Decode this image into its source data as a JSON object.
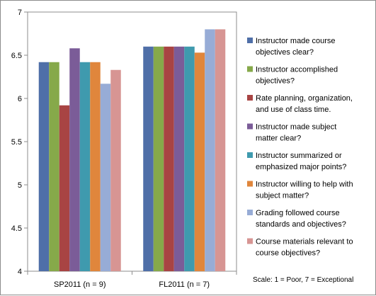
{
  "chart_data": {
    "type": "bar",
    "categories": [
      "SP2011 (n = 9)",
      "FL2011 (n = 7)"
    ],
    "series": [
      {
        "name": "Instructor made course objectives clear?",
        "legend_lines": [
          "Instructor made course",
          "objectives clear?"
        ],
        "color": "#4f6fa8",
        "values": [
          6.42,
          6.6
        ]
      },
      {
        "name": "Instructor accomplished objectives?",
        "legend_lines": [
          "Instructor accomplished",
          "objectives?"
        ],
        "color": "#86a94a",
        "values": [
          6.42,
          6.6
        ]
      },
      {
        "name": "Rate planning, organization, and use of class time.",
        "legend_lines": [
          "Rate planning, organization,",
          "and use of class time."
        ],
        "color": "#a84443",
        "values": [
          5.92,
          6.6
        ]
      },
      {
        "name": "Instructor made subject matter clear?",
        "legend_lines": [
          "Instructor made subject",
          "matter clear?"
        ],
        "color": "#7b5c98",
        "values": [
          6.58,
          6.6
        ]
      },
      {
        "name": "Instructor summarized or emphasized major points?",
        "legend_lines": [
          "Instructor summarized or",
          "emphasized major points?"
        ],
        "color": "#3f9aae",
        "values": [
          6.42,
          6.6
        ]
      },
      {
        "name": "Instructor willing to help with subject matter?",
        "legend_lines": [
          "Instructor willing to help with",
          "subject matter?"
        ],
        "color": "#e0863c",
        "values": [
          6.42,
          6.53
        ]
      },
      {
        "name": "Grading followed course standards and objectives?",
        "legend_lines": [
          "Grading followed course",
          "standards and objectives?"
        ],
        "color": "#97acd6",
        "values": [
          6.17,
          6.8
        ]
      },
      {
        "name": "Course materials relevant to course objectives?",
        "legend_lines": [
          "Course materials relevant to",
          "course objectives?"
        ],
        "color": "#d79593",
        "values": [
          6.33,
          6.8
        ]
      }
    ],
    "ylim": [
      4,
      7
    ],
    "yticks": [
      "4",
      "4.5",
      "5",
      "5.5",
      "6",
      "6.5",
      "7"
    ],
    "grid": false,
    "legend_position": "right",
    "note": "Scale: 1 = Poor,  7 = Exceptional"
  }
}
